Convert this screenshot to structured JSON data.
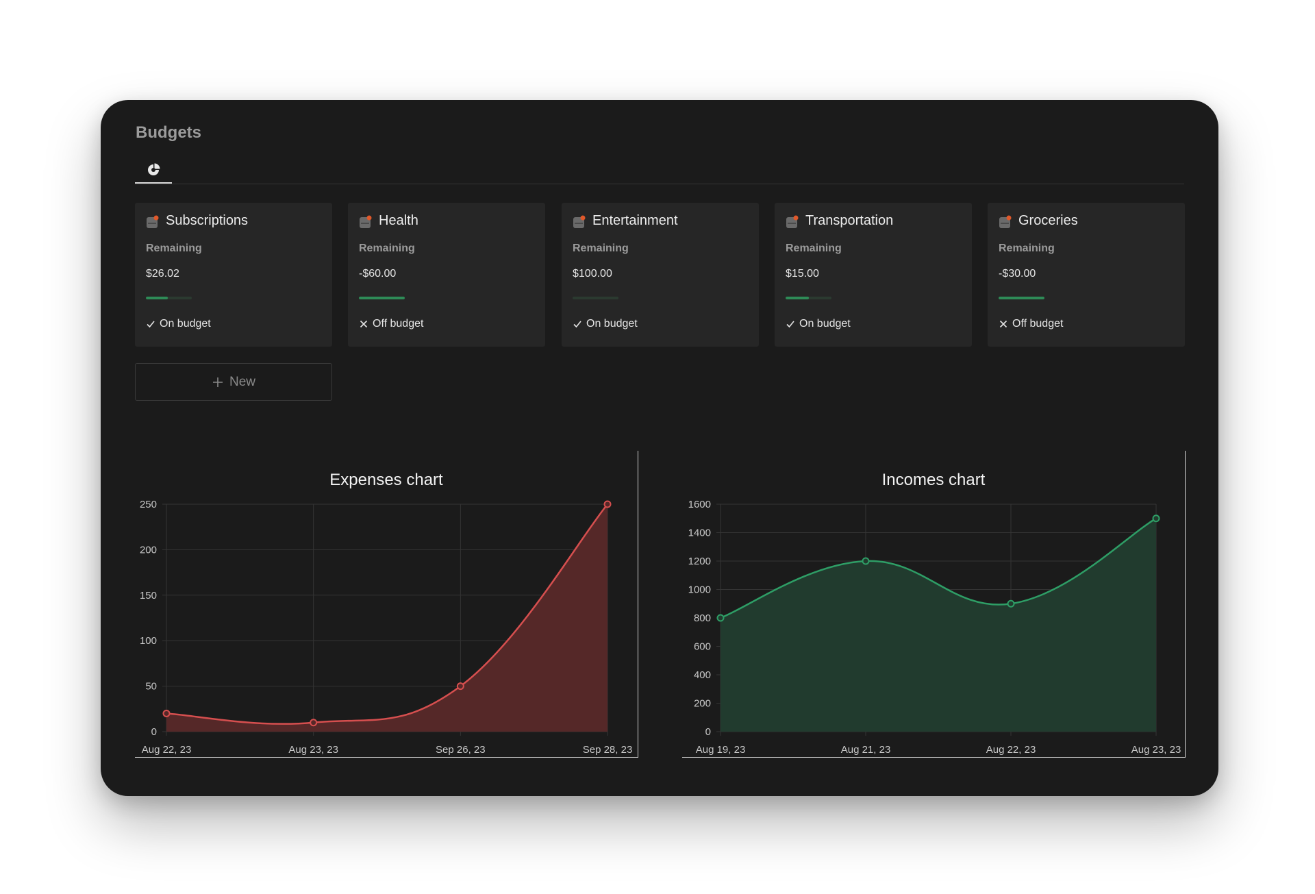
{
  "page": {
    "title": "Budgets"
  },
  "tabs": [
    {
      "icon": "pie-chart-icon",
      "active": true
    }
  ],
  "budgets": [
    {
      "name": "Subscriptions",
      "label": "Remaining",
      "amount": "$26.02",
      "progress": 0.48,
      "status": "On budget",
      "on_budget": true
    },
    {
      "name": "Health",
      "label": "Remaining",
      "amount": "-$60.00",
      "progress": 1.0,
      "status": "Off budget",
      "on_budget": false
    },
    {
      "name": "Entertainment",
      "label": "Remaining",
      "amount": "$100.00",
      "progress": 0.0,
      "status": "On budget",
      "on_budget": true
    },
    {
      "name": "Transportation",
      "label": "Remaining",
      "amount": "$15.00",
      "progress": 0.5,
      "status": "On budget",
      "on_budget": true
    },
    {
      "name": "Groceries",
      "label": "Remaining",
      "amount": "-$30.00",
      "progress": 1.0,
      "status": "Off budget",
      "on_budget": false
    }
  ],
  "new_button": {
    "label": "New"
  },
  "colors": {
    "expense_line": "#d64f4f",
    "expense_fill": "#552828",
    "income_line": "#2e9e66",
    "income_fill": "#213b2e",
    "progress": "#2e8b57"
  },
  "chart_data": [
    {
      "type": "area",
      "title": "Expenses chart",
      "categories": [
        "Aug 22, 23",
        "Aug 23, 23",
        "Sep 26, 23",
        "Sep 28, 23"
      ],
      "series": [
        {
          "values": [
            20,
            10,
            50,
            250
          ]
        }
      ],
      "ylim": [
        0,
        250
      ],
      "yticks": [
        0,
        50,
        100,
        150,
        200,
        250
      ],
      "grid": true
    },
    {
      "type": "area",
      "title": "Incomes chart",
      "categories": [
        "Aug 19, 23",
        "Aug 21, 23",
        "Aug 22, 23",
        "Aug 23, 23"
      ],
      "series": [
        {
          "values": [
            800,
            1200,
            900,
            1500
          ]
        }
      ],
      "ylim": [
        0,
        1600
      ],
      "yticks": [
        0,
        200,
        400,
        600,
        800,
        1000,
        1200,
        1400,
        1600
      ],
      "grid": true
    }
  ]
}
